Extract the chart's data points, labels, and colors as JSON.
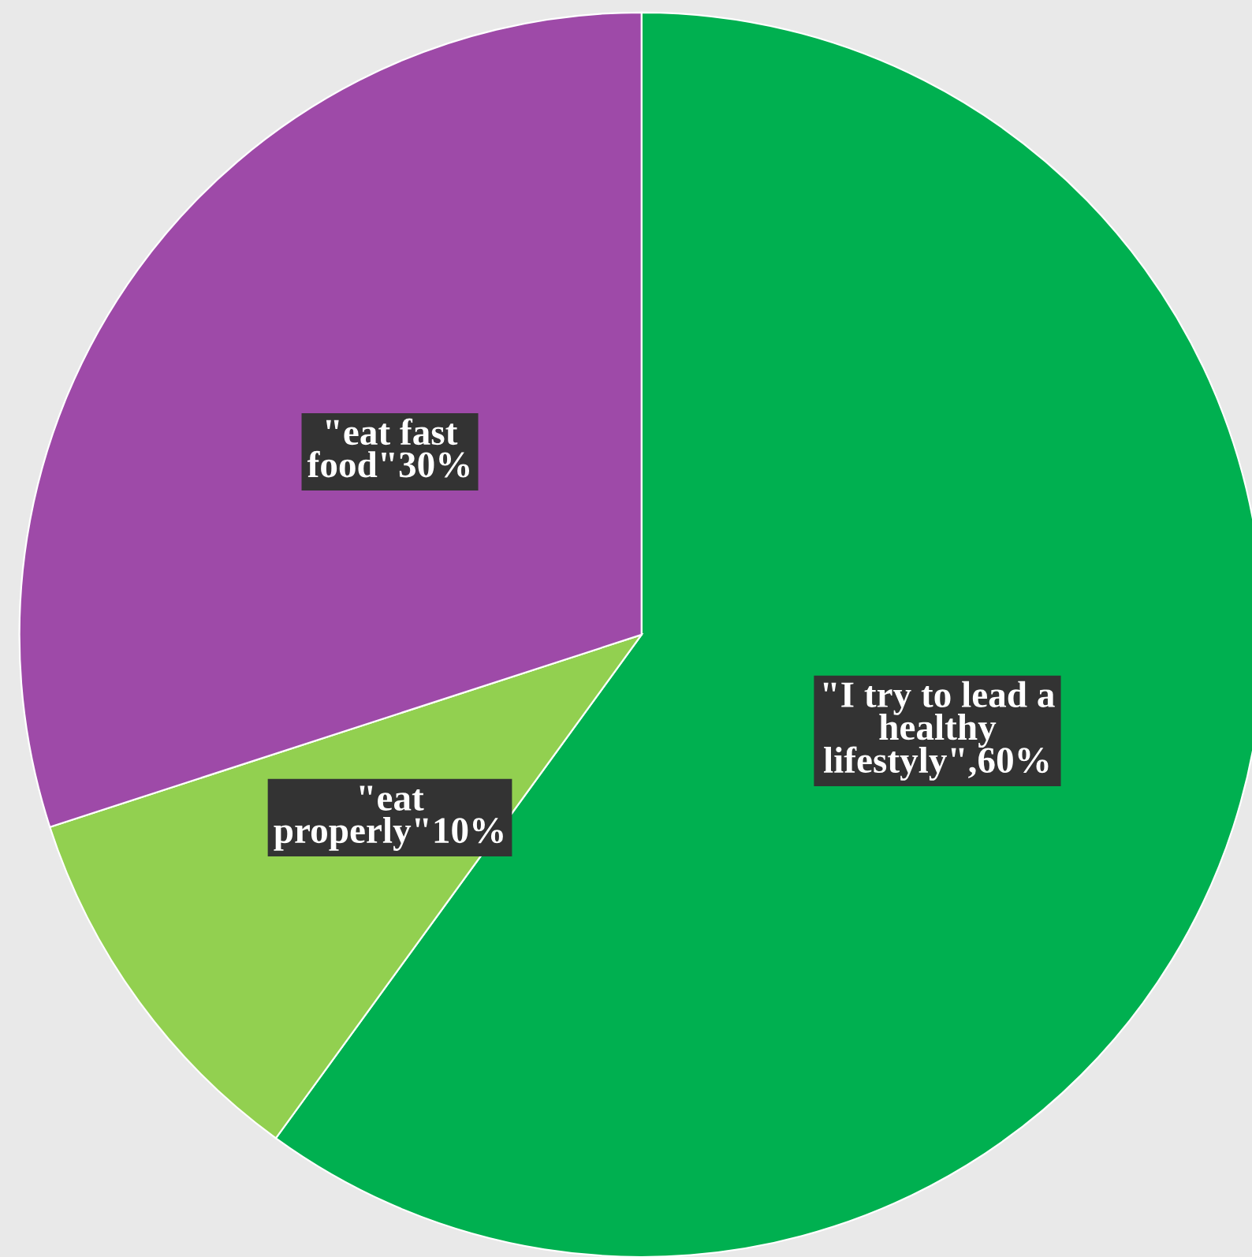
{
  "chart_data": {
    "type": "pie",
    "categories": [
      "\"I try to lead a\nhealthy\nlifestyly\",60%",
      "\"eat\nproperly\"10%",
      "\"eat fast\nfood\"30%"
    ],
    "values": [
      60,
      10,
      30
    ],
    "colors": [
      "#00b050",
      "#92d050",
      "#9e4aa8"
    ],
    "legend": false
  }
}
